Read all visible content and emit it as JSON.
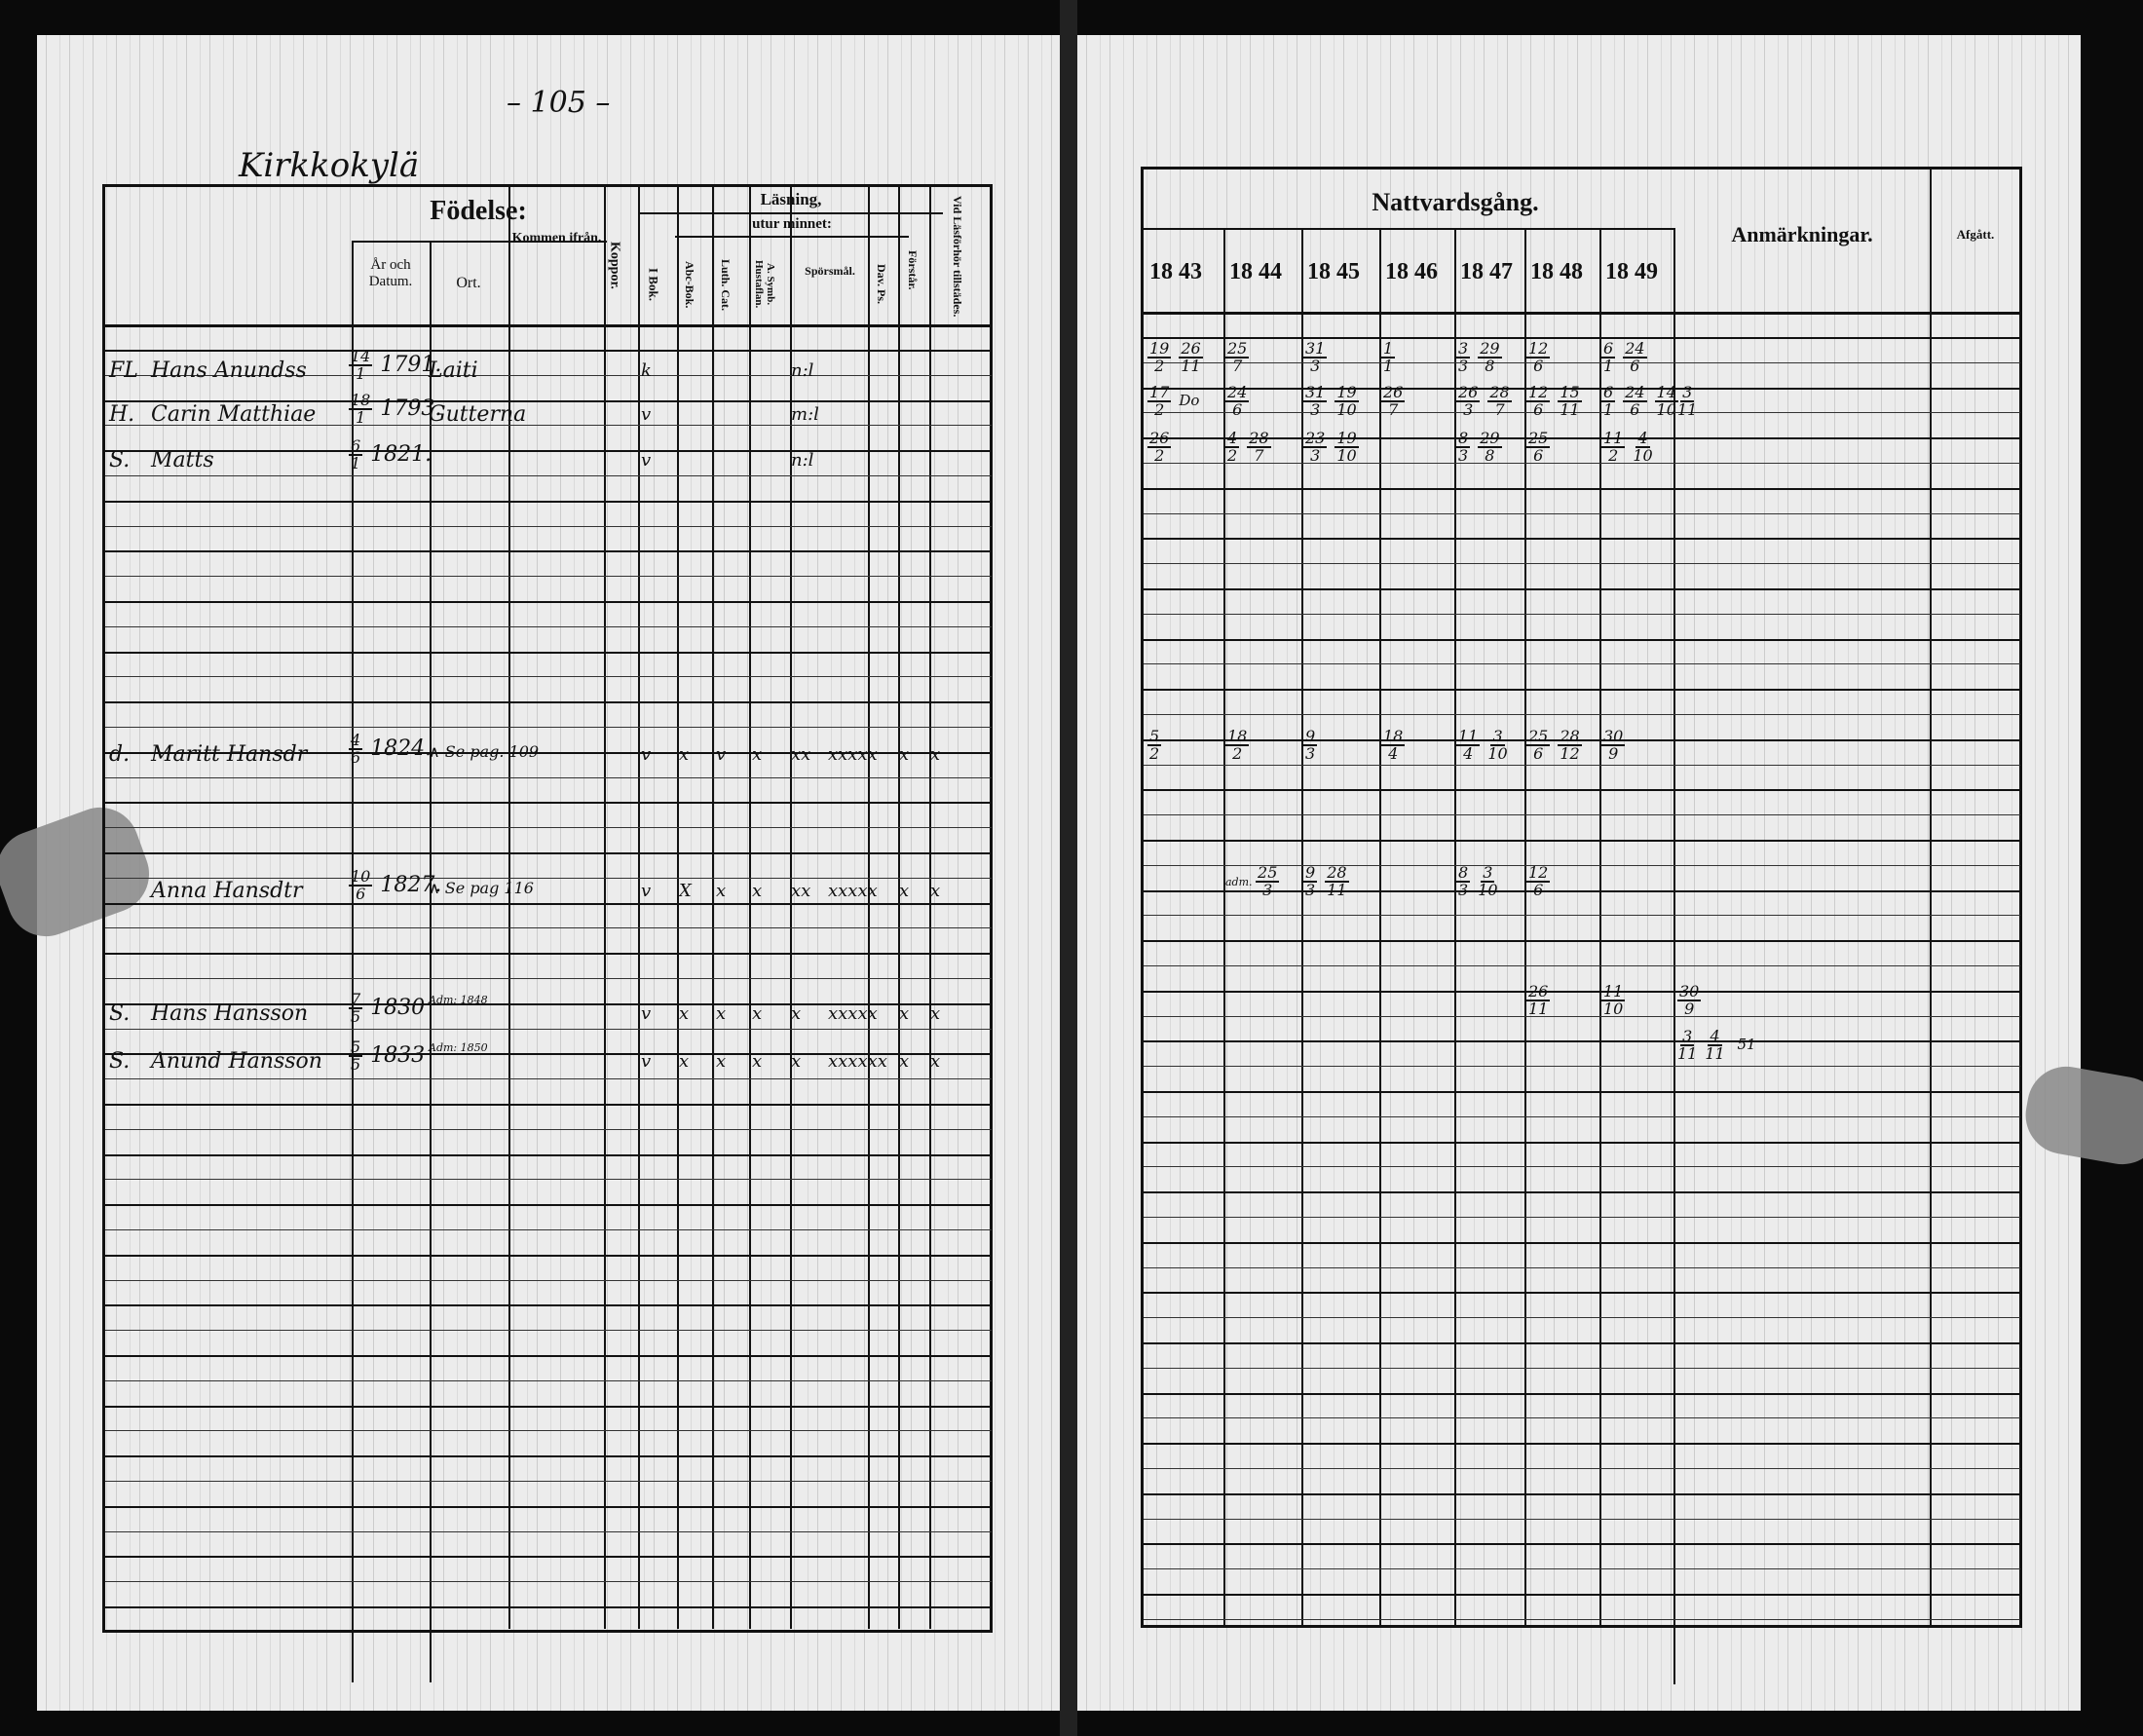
{
  "left_page": {
    "page_number": "– 105 –",
    "village": "Kirkkokylä",
    "headers": {
      "fodelse": "Födelse:",
      "ar_och_datum": "År och Datum.",
      "ort": "Ort.",
      "kommen_ifran": "Kommen ifrån.",
      "koppor": "Koppor.",
      "lasning": "Läsning,",
      "utur_minnet": "utur minnet:",
      "i_bok": "I Bok.",
      "abc_bok": "Abc-Bok.",
      "luth_cat": "Luth. Cat.",
      "symb": "A. Symb. Hustaflan.",
      "sporsmal": "Spörsmål.",
      "dav_ps": "Dav. Ps.",
      "forstar": "Förstår.",
      "vid_lasforhor": "Vid Läsförhör tillstädes."
    },
    "rows": [
      {
        "prefix": "FL",
        "name": "Hans Anundss",
        "date": "14/1",
        "year": "1791.",
        "place": "Laiti",
        "from": "",
        "marks": [
          "k",
          "",
          "",
          "",
          "n:l",
          "",
          "",
          ""
        ]
      },
      {
        "prefix": "H.",
        "name": "Carin Matthiae",
        "date": "18/1",
        "year": "1793.",
        "place": "Gutterna",
        "from": "",
        "marks": [
          "v",
          "",
          "",
          "",
          "m:l",
          "",
          "",
          ""
        ]
      },
      {
        "prefix": "S.",
        "name": "Matts",
        "date": "6/1",
        "year": "1821.",
        "place": "",
        "from": "",
        "marks": [
          "v",
          "",
          "",
          "",
          "n:l",
          "",
          "",
          ""
        ]
      },
      {
        "prefix": "d.",
        "name": "Maritt Hansdr",
        "date": "4/6",
        "year": "1824.",
        "place": "∧ Se pag. 109",
        "from": "",
        "marks": [
          "v",
          "x",
          "v",
          "x",
          "xx",
          "xxxxx",
          "x",
          "x"
        ]
      },
      {
        "prefix": "",
        "name": "Anna Hansdtr",
        "date": "10/6",
        "year": "1827.",
        "place": "∧ Se pag 116",
        "from": "",
        "marks": [
          "v",
          "X",
          "x",
          "x",
          "xx",
          "xxxxx",
          "x",
          "x"
        ]
      },
      {
        "prefix": "S.",
        "name": "Hans Hansson",
        "date": "7/5",
        "year": "1830",
        "place": "",
        "from": "Adm: 1848",
        "marks": [
          "v",
          "x",
          "x",
          "x",
          "x",
          "xxxxx",
          "x",
          "x"
        ]
      },
      {
        "prefix": "S.",
        "name": "Anund Hansson",
        "date": "5/5",
        "year": "1833",
        "place": "",
        "from": "Adm: 1850",
        "marks": [
          "v",
          "x",
          "x",
          "x",
          "x",
          "xxxxxx",
          "x",
          "x"
        ]
      }
    ]
  },
  "right_page": {
    "headers": {
      "nattvardsgang": "Nattvardsgång.",
      "anmarkningar": "Anmärkningar.",
      "afgatt": "Afgått.",
      "years": [
        "18 43",
        "18 44",
        "18 45",
        "18 46",
        "18 47",
        "18 48",
        "18 49"
      ]
    },
    "rows": [
      {
        "cells": [
          [
            "19/2",
            "26/11"
          ],
          [
            "25/7"
          ],
          [
            "31/3"
          ],
          [
            "1/1"
          ],
          [
            "3/3",
            "29/8"
          ],
          [
            "12/6"
          ],
          [
            "6/1",
            "24/6"
          ]
        ],
        "anm": []
      },
      {
        "cells": [
          [
            "17/2",
            "Do"
          ],
          [
            "24/6"
          ],
          [
            "31/3",
            "19/10"
          ],
          [
            "26/7"
          ],
          [
            "26/3",
            "28/7"
          ],
          [
            "12/6",
            "15/11"
          ],
          [
            "6/1",
            "24/6",
            "14/10"
          ]
        ],
        "anm": [
          "3/11"
        ]
      },
      {
        "cells": [
          [
            "26/2"
          ],
          [
            "4/2",
            "28/7"
          ],
          [
            "23/3",
            "19/10"
          ],
          [],
          [
            "8/3",
            "29/8"
          ],
          [
            "25/6"
          ],
          [
            "11/2",
            "4/10"
          ]
        ],
        "anm": []
      },
      {
        "cells": [
          [
            "5/2"
          ],
          [
            "18/2"
          ],
          [
            "9/3"
          ],
          [
            "18/4"
          ],
          [
            "11/4",
            "3/10"
          ],
          [
            "25/6",
            "28/12"
          ],
          [
            "30/9"
          ]
        ],
        "anm": []
      },
      {
        "cells": [
          [],
          [
            "adm. 25/3"
          ],
          [
            "9/3",
            "28/11"
          ],
          [],
          [
            "8/3",
            "3/10"
          ],
          [
            "12/6"
          ],
          []
        ],
        "anm": []
      },
      {
        "cells": [
          [],
          [],
          [],
          [],
          [],
          [
            "26/11"
          ],
          [
            "11/10"
          ]
        ],
        "anm": [
          "30/9"
        ]
      },
      {
        "cells": [
          [],
          [],
          [],
          [],
          [],
          [],
          []
        ],
        "anm": [
          "3/11",
          "4/11 51"
        ]
      }
    ]
  },
  "colors": {
    "paper": "#ececec",
    "ink": "#111111",
    "background": "#0a0a0a"
  }
}
